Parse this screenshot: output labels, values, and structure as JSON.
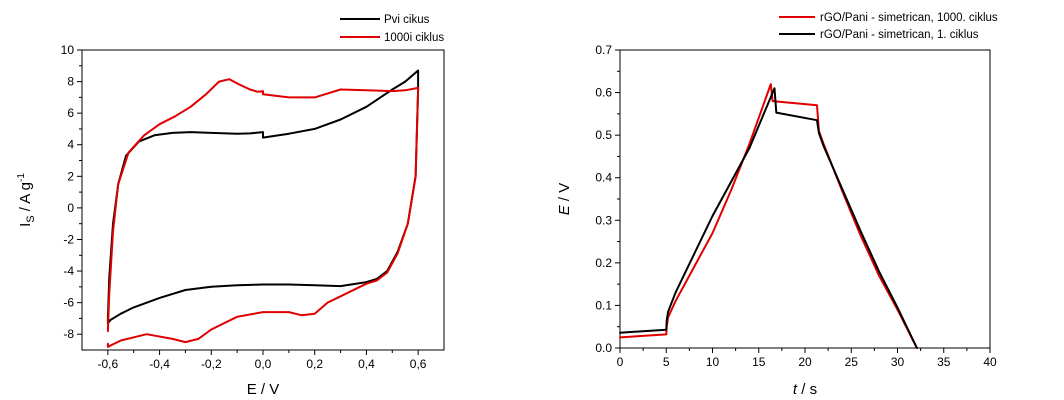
{
  "charts": [
    {
      "legend": [
        "Pvi cikus",
        "1000i ciklus"
      ],
      "xlabel": "E / V",
      "ylabel_main": "I",
      "ylabel_sub": "S",
      "ylabel_rest": " / A g",
      "ylabel_sup": "-1"
    },
    {
      "legend": [
        "rGO/Pani - simetrican, 1000. ciklus",
        "rGO/Pani - simetrican, 1. ciklus"
      ],
      "xlabel_var": "t",
      "xlabel_unit": " / s",
      "ylabel_var": "E",
      "ylabel_unit": " / V"
    }
  ],
  "colors": {
    "black_series": "#000000",
    "red_series": "#e00000"
  },
  "chart_data": [
    {
      "type": "line",
      "subtype": "cyclic-voltammogram",
      "title": "",
      "xlabel": "E / V",
      "ylabel": "I_S / A g^-1",
      "xlim": [
        -0.7,
        0.7
      ],
      "ylim": [
        -9,
        10
      ],
      "xticks": [
        -0.6,
        -0.4,
        -0.2,
        0.0,
        0.2,
        0.4,
        0.6
      ],
      "xtick_labels": [
        "-0,6",
        "-0,4",
        "-0,2",
        "0,0",
        "0,2",
        "0,4",
        "0,6"
      ],
      "yticks": [
        -8,
        -6,
        -4,
        -2,
        0,
        2,
        4,
        6,
        8,
        10
      ],
      "ytick_labels": [
        "-8",
        "-6",
        "-4",
        "-2",
        "0",
        "2",
        "4",
        "6",
        "8",
        "10"
      ],
      "legend_position": "top-right",
      "series": [
        {
          "name": "Pvi cikus",
          "color": "#000000",
          "x": [
            -0.6,
            -0.595,
            -0.58,
            -0.56,
            -0.53,
            -0.48,
            -0.42,
            -0.35,
            -0.28,
            -0.2,
            -0.1,
            -0.05,
            0.0,
            0.0,
            0.1,
            0.2,
            0.3,
            0.4,
            0.5,
            0.55,
            0.6,
            0.6,
            0.59,
            0.56,
            0.52,
            0.48,
            0.44,
            0.4,
            0.3,
            0.2,
            0.1,
            0.0,
            -0.1,
            -0.2,
            -0.3,
            -0.4,
            -0.5,
            -0.55,
            -0.59,
            -0.6,
            -0.6
          ],
          "y": [
            -7.0,
            -4.5,
            -1.0,
            1.5,
            3.3,
            4.2,
            4.6,
            4.75,
            4.8,
            4.75,
            4.7,
            4.72,
            4.8,
            4.45,
            4.7,
            5.0,
            5.6,
            6.4,
            7.5,
            8.0,
            8.7,
            7.5,
            2.0,
            -1.0,
            -2.8,
            -4.0,
            -4.5,
            -4.7,
            -4.95,
            -4.9,
            -4.85,
            -4.85,
            -4.9,
            -5.0,
            -5.2,
            -5.7,
            -6.3,
            -6.7,
            -7.1,
            -7.3,
            -7.0
          ]
        },
        {
          "name": "1000i ciklus",
          "color": "#e00000",
          "x": [
            -0.6,
            -0.595,
            -0.58,
            -0.56,
            -0.52,
            -0.46,
            -0.4,
            -0.34,
            -0.28,
            -0.22,
            -0.17,
            -0.13,
            -0.09,
            -0.05,
            -0.02,
            0.0,
            0.0,
            0.1,
            0.2,
            0.3,
            0.4,
            0.5,
            0.55,
            0.6,
            0.6,
            0.59,
            0.56,
            0.52,
            0.48,
            0.44,
            0.4,
            0.3,
            0.25,
            0.2,
            0.15,
            0.1,
            0.0,
            -0.1,
            -0.2,
            -0.25,
            -0.3,
            -0.35,
            -0.45,
            -0.55,
            -0.6,
            -0.6
          ],
          "y": [
            -7.8,
            -5.5,
            -1.5,
            1.5,
            3.5,
            4.6,
            5.3,
            5.8,
            6.4,
            7.2,
            8.0,
            8.15,
            7.8,
            7.5,
            7.35,
            7.4,
            7.2,
            7.0,
            7.0,
            7.5,
            7.45,
            7.4,
            7.45,
            7.6,
            7.4,
            2.0,
            -1.0,
            -2.9,
            -4.1,
            -4.6,
            -4.8,
            -5.6,
            -6.0,
            -6.7,
            -6.8,
            -6.6,
            -6.6,
            -6.9,
            -7.7,
            -8.3,
            -8.5,
            -8.3,
            -8.0,
            -8.4,
            -8.8,
            -8.6
          ]
        }
      ]
    },
    {
      "type": "line",
      "subtype": "galvanostatic-charge-discharge",
      "title": "",
      "xlabel": "t / s",
      "ylabel": "E / V",
      "xlim": [
        0,
        40
      ],
      "ylim": [
        0,
        0.7
      ],
      "xticks": [
        0,
        5,
        10,
        15,
        20,
        25,
        30,
        35,
        40
      ],
      "xtick_labels": [
        "0",
        "5",
        "10",
        "15",
        "20",
        "25",
        "30",
        "35",
        "40"
      ],
      "yticks": [
        0.0,
        0.1,
        0.2,
        0.3,
        0.4,
        0.5,
        0.6,
        0.7
      ],
      "ytick_labels": [
        "0.0",
        "0.1",
        "0.2",
        "0.3",
        "0.4",
        "0.5",
        "0.6",
        "0.7"
      ],
      "legend_position": "top-right",
      "series": [
        {
          "name": "rGO/Pani - simetrican, 1000. ciklus",
          "color": "#e00000",
          "x": [
            0,
            5,
            5.05,
            5.2,
            6,
            8,
            10,
            12,
            14,
            16.3,
            16.5,
            16.5,
            21.3,
            21.5,
            22,
            24,
            26,
            28,
            30,
            32.1
          ],
          "y": [
            0.025,
            0.032,
            0.05,
            0.072,
            0.11,
            0.19,
            0.27,
            0.37,
            0.48,
            0.62,
            0.58,
            0.58,
            0.57,
            0.51,
            0.48,
            0.37,
            0.265,
            0.17,
            0.09,
            0.0
          ]
        },
        {
          "name": "rGO/Pani - simetrican, 1. ciklus",
          "color": "#000000",
          "x": [
            0,
            5,
            5.05,
            5.2,
            6,
            8,
            10,
            12,
            14,
            16.7,
            16.9,
            16.9,
            21.3,
            21.5,
            22,
            24,
            26,
            28,
            30,
            32.1
          ],
          "y": [
            0.036,
            0.043,
            0.065,
            0.085,
            0.13,
            0.22,
            0.31,
            0.39,
            0.47,
            0.61,
            0.553,
            0.553,
            0.535,
            0.505,
            0.475,
            0.375,
            0.275,
            0.18,
            0.095,
            0.0
          ]
        }
      ]
    }
  ]
}
